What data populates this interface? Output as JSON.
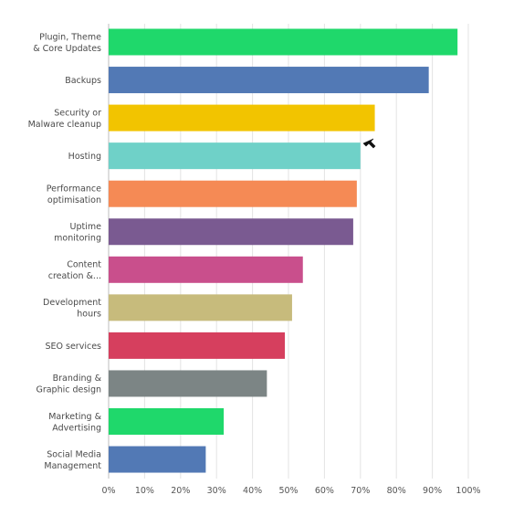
{
  "chart_data": {
    "type": "bar",
    "orientation": "horizontal",
    "categories": [
      [
        "Plugin, Theme",
        "& Core Updates"
      ],
      [
        "Backups"
      ],
      [
        "Security or",
        "Malware cleanup"
      ],
      [
        "Hosting"
      ],
      [
        "Performance",
        "optimisation"
      ],
      [
        "Uptime",
        "monitoring"
      ],
      [
        "Content",
        "creation &..."
      ],
      [
        "Development",
        "hours"
      ],
      [
        "SEO services"
      ],
      [
        "Branding &",
        "Graphic design"
      ],
      [
        "Marketing &",
        "Advertising"
      ],
      [
        "Social Media",
        "Management"
      ]
    ],
    "values": [
      97,
      89,
      74,
      70,
      69,
      68,
      54,
      51,
      49,
      44,
      32,
      27
    ],
    "colors": [
      "#1fd86b",
      "#5279b5",
      "#f2c400",
      "#6fd1c8",
      "#f58a55",
      "#7a5a91",
      "#c94f8c",
      "#c7bb7c",
      "#d63f5e",
      "#7c8585",
      "#1fd86b",
      "#5279b5"
    ],
    "xlim": [
      0,
      100
    ],
    "x_ticks": [
      "0%",
      "10%",
      "20%",
      "30%",
      "40%",
      "50%",
      "60%",
      "70%",
      "80%",
      "90%",
      "100%"
    ],
    "grid": true,
    "title": "",
    "xlabel": "",
    "ylabel": ""
  }
}
